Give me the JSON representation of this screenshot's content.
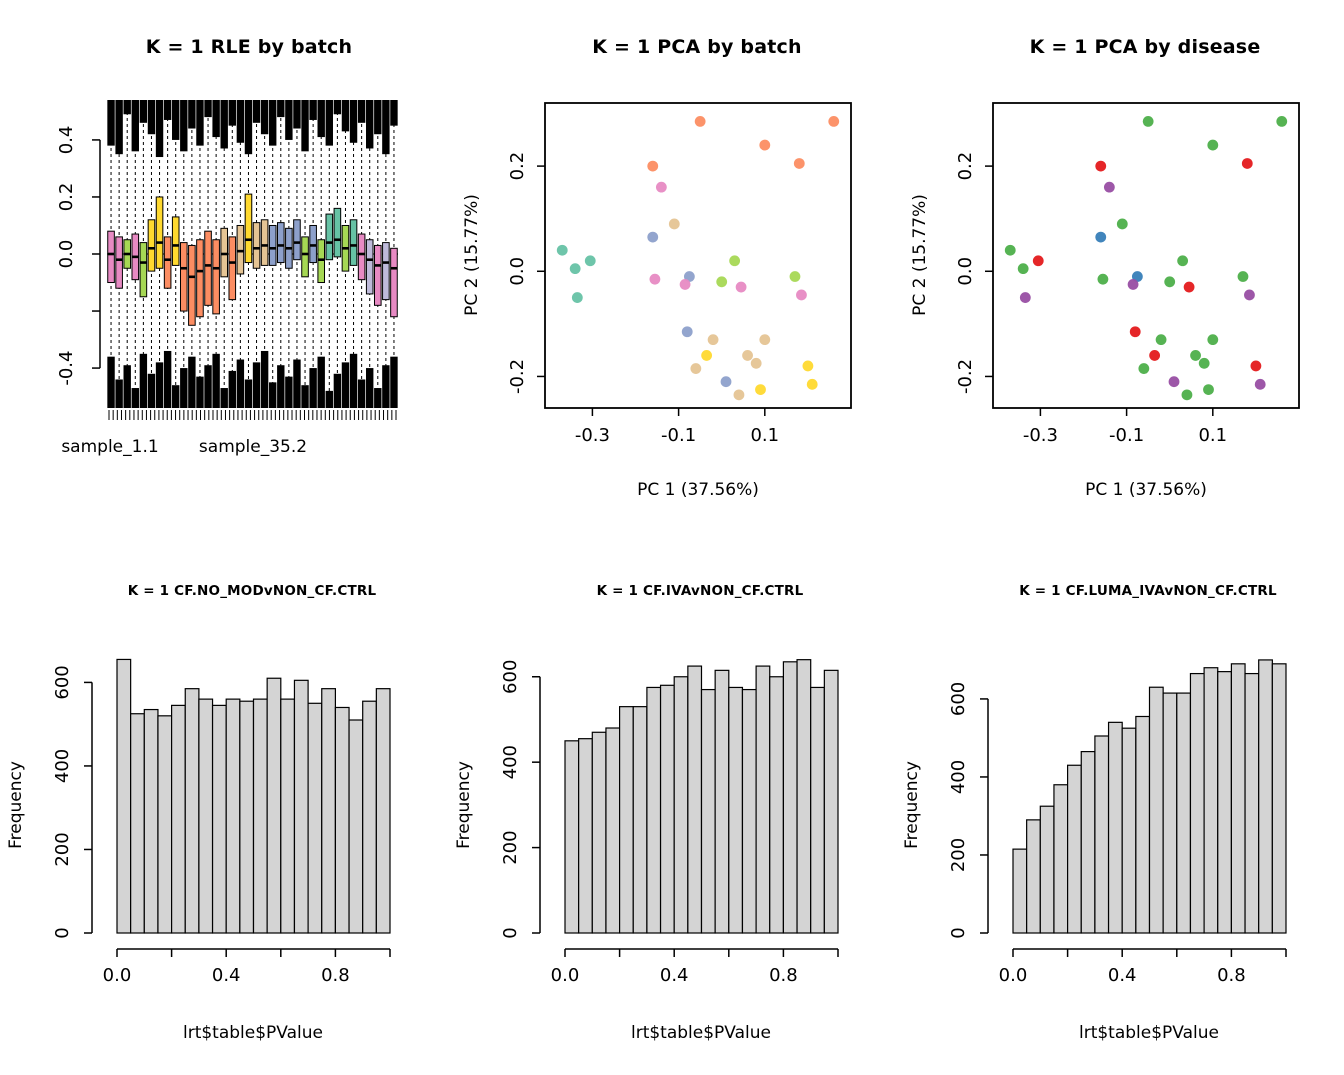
{
  "palettes": {
    "batch": {
      "teal": "#66C2A5",
      "orange": "#FC8D62",
      "blue": "#8DA0CB",
      "pink": "#E78AC3",
      "green": "#A6D854",
      "yellow": "#FFD92F",
      "tan": "#E5C494"
    },
    "disease": {
      "red": "#E41A1C",
      "blue": "#377EB8",
      "green": "#4DAF4A",
      "purple": "#984EA3"
    },
    "box": {
      "pink": "#E78AC3",
      "green": "#A6D854",
      "yellow": "#FFD92F",
      "orange": "#FC8D62",
      "tan": "#E5C494",
      "blue": "#8DA0CB",
      "teal": "#66C2A5",
      "lavender": "#BEBADA"
    }
  },
  "pca_points": [
    {
      "x": -0.37,
      "y": 0.04,
      "batch": "teal",
      "disease": "green"
    },
    {
      "x": -0.34,
      "y": 0.005,
      "batch": "teal",
      "disease": "green"
    },
    {
      "x": -0.305,
      "y": 0.02,
      "batch": "teal",
      "disease": "red"
    },
    {
      "x": -0.335,
      "y": -0.05,
      "batch": "teal",
      "disease": "purple"
    },
    {
      "x": -0.16,
      "y": 0.2,
      "batch": "orange",
      "disease": "red"
    },
    {
      "x": -0.05,
      "y": 0.285,
      "batch": "orange",
      "disease": "green"
    },
    {
      "x": 0.1,
      "y": 0.24,
      "batch": "orange",
      "disease": "green"
    },
    {
      "x": 0.26,
      "y": 0.285,
      "batch": "orange",
      "disease": "green"
    },
    {
      "x": 0.18,
      "y": 0.205,
      "batch": "orange",
      "disease": "red"
    },
    {
      "x": -0.14,
      "y": 0.16,
      "batch": "pink",
      "disease": "purple"
    },
    {
      "x": -0.16,
      "y": 0.065,
      "batch": "blue",
      "disease": "blue"
    },
    {
      "x": -0.11,
      "y": 0.09,
      "batch": "tan",
      "disease": "green"
    },
    {
      "x": -0.155,
      "y": -0.015,
      "batch": "pink",
      "disease": "green"
    },
    {
      "x": -0.075,
      "y": -0.01,
      "batch": "blue",
      "disease": "blue"
    },
    {
      "x": -0.085,
      "y": -0.025,
      "batch": "pink",
      "disease": "purple"
    },
    {
      "x": 0.0,
      "y": -0.02,
      "batch": "green",
      "disease": "green"
    },
    {
      "x": 0.03,
      "y": 0.02,
      "batch": "green",
      "disease": "green"
    },
    {
      "x": 0.045,
      "y": -0.03,
      "batch": "pink",
      "disease": "red"
    },
    {
      "x": 0.17,
      "y": -0.01,
      "batch": "green",
      "disease": "green"
    },
    {
      "x": 0.185,
      "y": -0.045,
      "batch": "pink",
      "disease": "purple"
    },
    {
      "x": -0.08,
      "y": -0.115,
      "batch": "blue",
      "disease": "red"
    },
    {
      "x": -0.02,
      "y": -0.13,
      "batch": "tan",
      "disease": "green"
    },
    {
      "x": -0.06,
      "y": -0.185,
      "batch": "tan",
      "disease": "green"
    },
    {
      "x": 0.01,
      "y": -0.21,
      "batch": "blue",
      "disease": "purple"
    },
    {
      "x": -0.035,
      "y": -0.16,
      "batch": "yellow",
      "disease": "red"
    },
    {
      "x": 0.06,
      "y": -0.16,
      "batch": "tan",
      "disease": "green"
    },
    {
      "x": 0.08,
      "y": -0.175,
      "batch": "tan",
      "disease": "green"
    },
    {
      "x": 0.1,
      "y": -0.13,
      "batch": "tan",
      "disease": "green"
    },
    {
      "x": 0.09,
      "y": -0.225,
      "batch": "yellow",
      "disease": "green"
    },
    {
      "x": 0.2,
      "y": -0.18,
      "batch": "yellow",
      "disease": "red"
    },
    {
      "x": 0.21,
      "y": -0.215,
      "batch": "yellow",
      "disease": "purple"
    },
    {
      "x": 0.04,
      "y": -0.235,
      "batch": "tan",
      "disease": "green"
    }
  ],
  "chart_data": [
    {
      "id": "rle",
      "type": "boxplot",
      "title": "K = 1 RLE by batch",
      "xlabels": [
        "sample_1.1",
        "sample_35.2"
      ],
      "ylim": [
        -0.54,
        0.54
      ],
      "ytick_vals": [
        0.4,
        0.2,
        0.0,
        -0.2,
        -0.4
      ],
      "ytick_labels": [
        "0.4",
        "0.2",
        "0.0",
        "",
        "-0.4"
      ],
      "n_axis_ticks": 70,
      "zero_line": 0.0,
      "boxes": [
        {
          "color": "pink",
          "q1": -0.1,
          "med": 0.0,
          "q3": 0.08,
          "tm": 0.16,
          "bm": 0.18
        },
        {
          "color": "pink",
          "q1": -0.12,
          "med": -0.02,
          "q3": 0.06,
          "tm": 0.19,
          "bm": 0.1
        },
        {
          "color": "green",
          "q1": -0.05,
          "med": 0.0,
          "q3": 0.05,
          "tm": 0.05,
          "bm": 0.15
        },
        {
          "color": "pink",
          "q1": -0.09,
          "med": -0.01,
          "q3": 0.07,
          "tm": 0.18,
          "bm": 0.07
        },
        {
          "color": "green",
          "q1": -0.15,
          "med": -0.03,
          "q3": 0.04,
          "tm": 0.08,
          "bm": 0.19
        },
        {
          "color": "yellow",
          "q1": -0.06,
          "med": 0.02,
          "q3": 0.12,
          "tm": 0.12,
          "bm": 0.12
        },
        {
          "color": "yellow",
          "q1": -0.05,
          "med": 0.04,
          "q3": 0.2,
          "tm": 0.2,
          "bm": 0.16
        },
        {
          "color": "orange",
          "q1": -0.12,
          "med": -0.02,
          "q3": 0.06,
          "tm": 0.07,
          "bm": 0.2
        },
        {
          "color": "yellow",
          "q1": -0.04,
          "med": 0.03,
          "q3": 0.13,
          "tm": 0.14,
          "bm": 0.08
        },
        {
          "color": "orange",
          "q1": -0.2,
          "med": -0.05,
          "q3": 0.04,
          "tm": 0.18,
          "bm": 0.14
        },
        {
          "color": "orange",
          "q1": -0.25,
          "med": -0.08,
          "q3": 0.03,
          "tm": 0.1,
          "bm": 0.18
        },
        {
          "color": "orange",
          "q1": -0.22,
          "med": -0.06,
          "q3": 0.05,
          "tm": 0.16,
          "bm": 0.11
        },
        {
          "color": "orange",
          "q1": -0.18,
          "med": -0.04,
          "q3": 0.08,
          "tm": 0.06,
          "bm": 0.15
        },
        {
          "color": "orange",
          "q1": -0.21,
          "med": -0.05,
          "q3": 0.05,
          "tm": 0.13,
          "bm": 0.19
        },
        {
          "color": "tan",
          "q1": -0.08,
          "med": 0.0,
          "q3": 0.09,
          "tm": 0.17,
          "bm": 0.07
        },
        {
          "color": "orange",
          "q1": -0.16,
          "med": -0.03,
          "q3": 0.06,
          "tm": 0.09,
          "bm": 0.13
        },
        {
          "color": "tan",
          "q1": -0.07,
          "med": 0.01,
          "q3": 0.1,
          "tm": 0.15,
          "bm": 0.17
        },
        {
          "color": "yellow",
          "q1": -0.03,
          "med": 0.05,
          "q3": 0.21,
          "tm": 0.19,
          "bm": 0.1
        },
        {
          "color": "tan",
          "q1": -0.05,
          "med": 0.02,
          "q3": 0.11,
          "tm": 0.08,
          "bm": 0.16
        },
        {
          "color": "tan",
          "q1": -0.04,
          "med": 0.03,
          "q3": 0.12,
          "tm": 0.12,
          "bm": 0.2
        },
        {
          "color": "blue",
          "q1": -0.04,
          "med": 0.02,
          "q3": 0.1,
          "tm": 0.16,
          "bm": 0.09
        },
        {
          "color": "blue",
          "q1": -0.03,
          "med": 0.03,
          "q3": 0.11,
          "tm": 0.06,
          "bm": 0.15
        },
        {
          "color": "blue",
          "q1": -0.05,
          "med": 0.02,
          "q3": 0.09,
          "tm": 0.14,
          "bm": 0.11
        },
        {
          "color": "blue",
          "q1": -0.02,
          "med": 0.04,
          "q3": 0.12,
          "tm": 0.1,
          "bm": 0.17
        },
        {
          "color": "green",
          "q1": -0.08,
          "med": 0.0,
          "q3": 0.06,
          "tm": 0.18,
          "bm": 0.08
        },
        {
          "color": "blue",
          "q1": -0.03,
          "med": 0.03,
          "q3": 0.1,
          "tm": 0.07,
          "bm": 0.14
        },
        {
          "color": "green",
          "q1": -0.1,
          "med": -0.02,
          "q3": 0.05,
          "tm": 0.13,
          "bm": 0.18
        },
        {
          "color": "teal",
          "q1": -0.02,
          "med": 0.04,
          "q3": 0.14,
          "tm": 0.16,
          "bm": 0.06
        },
        {
          "color": "teal",
          "q1": -0.01,
          "med": 0.05,
          "q3": 0.16,
          "tm": 0.05,
          "bm": 0.12
        },
        {
          "color": "green",
          "q1": -0.06,
          "med": 0.02,
          "q3": 0.1,
          "tm": 0.11,
          "bm": 0.16
        },
        {
          "color": "teal",
          "q1": -0.04,
          "med": 0.03,
          "q3": 0.12,
          "tm": 0.15,
          "bm": 0.19
        },
        {
          "color": "pink",
          "q1": -0.09,
          "med": 0.0,
          "q3": 0.07,
          "tm": 0.08,
          "bm": 0.1
        },
        {
          "color": "lavender",
          "q1": -0.14,
          "med": -0.02,
          "q3": 0.05,
          "tm": 0.17,
          "bm": 0.14
        },
        {
          "color": "pink",
          "q1": -0.18,
          "med": -0.04,
          "q3": 0.03,
          "tm": 0.12,
          "bm": 0.07
        },
        {
          "color": "lavender",
          "q1": -0.16,
          "med": -0.03,
          "q3": 0.04,
          "tm": 0.19,
          "bm": 0.15
        },
        {
          "color": "pink",
          "q1": -0.22,
          "med": -0.05,
          "q3": 0.02,
          "tm": 0.09,
          "bm": 0.18
        }
      ]
    },
    {
      "id": "pca_batch",
      "type": "scatter",
      "title": "K = 1 PCA by batch",
      "xlabel": "PC 1 (37.56%)",
      "ylabel": "PC 2 (15.77%)",
      "xlim": [
        -0.41,
        0.3
      ],
      "ylim": [
        -0.26,
        0.32
      ],
      "xtick_vals": [
        -0.3,
        -0.1,
        0.1
      ],
      "xtick_labels": [
        "-0.3",
        "-0.1",
        "0.1"
      ],
      "ytick_vals": [
        -0.2,
        0.0,
        0.2
      ],
      "ytick_labels": [
        "-0.2",
        "0.0",
        "0.2"
      ],
      "color_key": "batch",
      "points_ref": "pca_points"
    },
    {
      "id": "pca_disease",
      "type": "scatter",
      "title": "K = 1 PCA by disease",
      "xlabel": "PC 1 (37.56%)",
      "ylabel": "PC 2 (15.77%)",
      "xlim": [
        -0.41,
        0.3
      ],
      "ylim": [
        -0.26,
        0.32
      ],
      "xtick_vals": [
        -0.3,
        -0.1,
        0.1
      ],
      "xtick_labels": [
        "-0.3",
        "-0.1",
        "0.1"
      ],
      "ytick_vals": [
        -0.2,
        0.0,
        0.2
      ],
      "ytick_labels": [
        "-0.2",
        "0.0",
        "0.2"
      ],
      "color_key": "disease",
      "points_ref": "pca_points"
    },
    {
      "id": "hist1",
      "type": "histogram",
      "title": "K = 1 CF.NO_MODvNON_CF.CTRL",
      "xlabel": "lrt$table$PValue",
      "ylabel": "Frequency",
      "bin_start": 0,
      "bin_width": 0.05,
      "counts": [
        655,
        525,
        535,
        520,
        545,
        585,
        560,
        545,
        560,
        555,
        560,
        610,
        560,
        605,
        550,
        585,
        540,
        510,
        555,
        585
      ],
      "xtick_vals": [
        0.0,
        0.2,
        0.4,
        0.6,
        0.8,
        1.0
      ],
      "xtick_labels": [
        "0.0",
        "",
        "0.4",
        "",
        "0.8",
        ""
      ],
      "ytick_vals": [
        0,
        200,
        400,
        600
      ],
      "ytick_labels": [
        "0",
        "200",
        "400",
        "600"
      ],
      "ylim": [
        0,
        680
      ],
      "bar_fill": "#D4D4D4"
    },
    {
      "id": "hist2",
      "type": "histogram",
      "title": "K = 1 CF.IVAvNON_CF.CTRL",
      "xlabel": "lrt$table$PValue",
      "ylabel": "Frequency",
      "bin_start": 0,
      "bin_width": 0.05,
      "counts": [
        450,
        455,
        470,
        480,
        530,
        530,
        575,
        580,
        600,
        625,
        570,
        615,
        575,
        570,
        625,
        600,
        635,
        640,
        575,
        615
      ],
      "xtick_vals": [
        0.0,
        0.2,
        0.4,
        0.6,
        0.8,
        1.0
      ],
      "xtick_labels": [
        "0.0",
        "",
        "0.4",
        "",
        "0.8",
        ""
      ],
      "ytick_vals": [
        0,
        200,
        400,
        600
      ],
      "ytick_labels": [
        "0",
        "200",
        "400",
        "600"
      ],
      "ylim": [
        0,
        665
      ],
      "bar_fill": "#D4D4D4"
    },
    {
      "id": "hist3",
      "type": "histogram",
      "title": "K = 1 CF.LUMA_IVAvNON_CF.CTRL",
      "xlabel": "lrt$table$PValue",
      "ylabel": "Frequency",
      "bin_start": 0,
      "bin_width": 0.05,
      "counts": [
        215,
        290,
        325,
        380,
        430,
        465,
        505,
        540,
        525,
        555,
        630,
        615,
        615,
        665,
        680,
        670,
        690,
        665,
        700,
        690
      ],
      "xtick_vals": [
        0.0,
        0.2,
        0.4,
        0.6,
        0.8,
        1.0
      ],
      "xtick_labels": [
        "0.0",
        "",
        "0.4",
        "",
        "0.8",
        ""
      ],
      "ytick_vals": [
        0,
        200,
        400,
        600
      ],
      "ytick_labels": [
        "0",
        "200",
        "400",
        "600"
      ],
      "ylim": [
        0,
        728
      ],
      "bar_fill": "#D4D4D4"
    }
  ]
}
